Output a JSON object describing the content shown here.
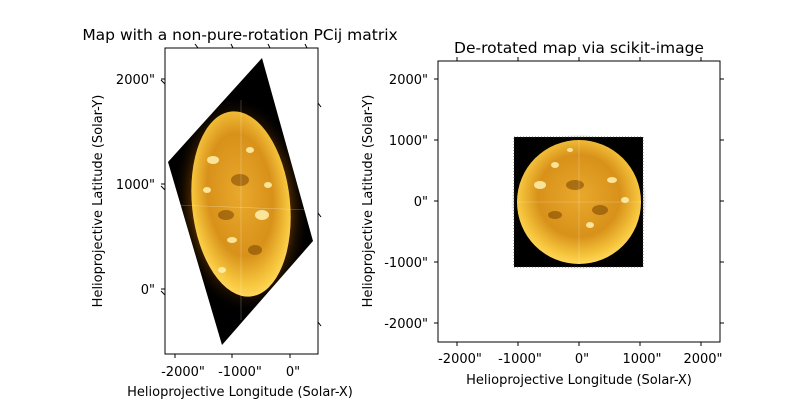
{
  "chart_data": [
    {
      "type": "image",
      "title": "Map with a non-pure-rotation PCij matrix",
      "xlabel": "Helioprojective Longitude (Solar-X)",
      "ylabel": "Helioprojective Latitude (Solar-Y)",
      "x_ticks": [
        "-2000\"",
        "-1000\"",
        "0\""
      ],
      "y_ticks": [
        "0\"",
        "1000\"",
        "2000\""
      ],
      "colormap": "solar (black-orange-yellow)",
      "frame_color": "#000000"
    },
    {
      "type": "image",
      "title": "De-rotated map via scikit-image",
      "xlabel": "Helioprojective Longitude (Solar-X)",
      "ylabel": "Helioprojective Latitude (Solar-Y)",
      "x_ticks": [
        "-2000\"",
        "-1000\"",
        "0\"",
        "1000\"",
        "2000\""
      ],
      "y_ticks": [
        "-2000\"",
        "-1000\"",
        "0\"",
        "1000\"",
        "2000\""
      ],
      "colormap": "solar (black-orange-yellow)",
      "frame_color": "#000000"
    }
  ]
}
